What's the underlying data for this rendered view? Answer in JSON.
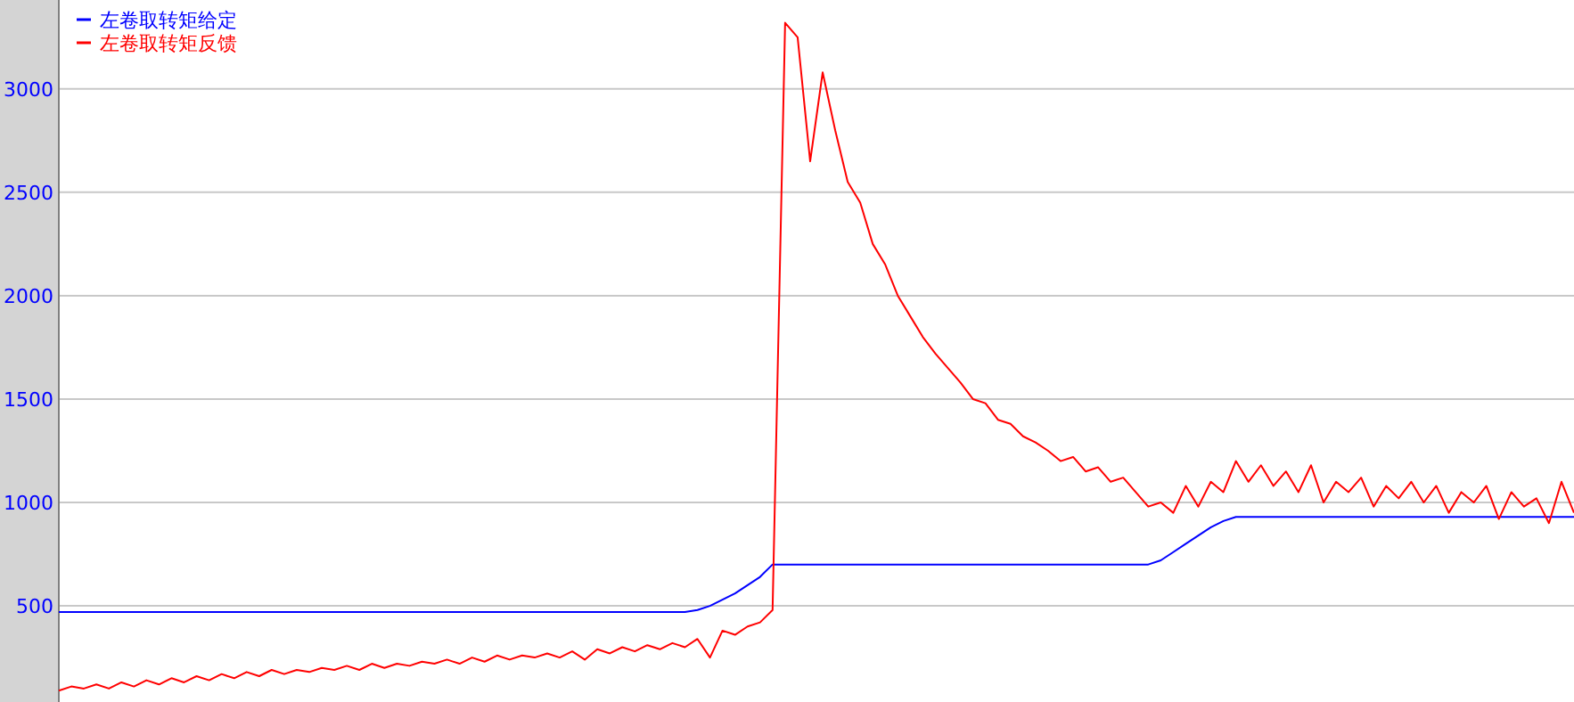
{
  "chart_data": {
    "type": "line",
    "categories": [
      null,
      null,
      null,
      null,
      null,
      null,
      null,
      null,
      null,
      null,
      null,
      null,
      null,
      null,
      null,
      null,
      null,
      null,
      null,
      null,
      null,
      null,
      null,
      null,
      null,
      null,
      null,
      null,
      null,
      null,
      null,
      null,
      null,
      null,
      null,
      null,
      null,
      null,
      null,
      null,
      null,
      null,
      null,
      null,
      null,
      null,
      null,
      null,
      null,
      null,
      null,
      null,
      null,
      null,
      null,
      null,
      null,
      null,
      null,
      null,
      null,
      null,
      null,
      null,
      null,
      null,
      null,
      null,
      null,
      null,
      null,
      null,
      null,
      null,
      null,
      null,
      null,
      null,
      null,
      null,
      null,
      null,
      null,
      null,
      null,
      null,
      null,
      null,
      null,
      null,
      null,
      null,
      null,
      null,
      null,
      null,
      null,
      null,
      null,
      null,
      null,
      null,
      null,
      null,
      null,
      null,
      null,
      null,
      null,
      null,
      null,
      null,
      null,
      null,
      null,
      null,
      null,
      null,
      null,
      null,
      null,
      null
    ],
    "ylim": [
      35,
      3430
    ],
    "yticks": [
      500,
      1000,
      1500,
      2000,
      2500,
      3000
    ],
    "grid": "y",
    "legend": "top left",
    "series": [
      {
        "name": "左卷取转矩给定",
        "color": "#0000ff",
        "values": [
          470,
          470,
          470,
          470,
          470,
          470,
          470,
          470,
          470,
          470,
          470,
          470,
          470,
          470,
          470,
          470,
          470,
          470,
          470,
          470,
          470,
          470,
          470,
          470,
          470,
          470,
          470,
          470,
          470,
          470,
          470,
          470,
          470,
          470,
          470,
          470,
          470,
          470,
          470,
          470,
          470,
          470,
          470,
          470,
          470,
          470,
          470,
          470,
          470,
          470,
          470,
          480,
          500,
          530,
          560,
          600,
          640,
          700,
          700,
          700,
          700,
          700,
          700,
          700,
          700,
          700,
          700,
          700,
          700,
          700,
          700,
          700,
          700,
          700,
          700,
          700,
          700,
          700,
          700,
          700,
          700,
          700,
          700,
          700,
          700,
          700,
          700,
          700,
          720,
          760,
          800,
          840,
          880,
          910,
          930,
          930,
          930,
          930,
          930,
          930,
          930,
          930,
          930,
          930,
          930,
          930,
          930,
          930,
          930,
          930,
          930,
          930,
          930,
          930,
          930,
          930,
          930,
          930,
          930,
          930,
          930,
          930
        ]
      },
      {
        "name": "左卷取转矩反馈",
        "color": "#ff0000",
        "values": [
          90,
          110,
          100,
          120,
          100,
          130,
          110,
          140,
          120,
          150,
          130,
          160,
          140,
          170,
          150,
          180,
          160,
          190,
          170,
          190,
          180,
          200,
          190,
          210,
          190,
          220,
          200,
          220,
          210,
          230,
          220,
          240,
          220,
          250,
          230,
          260,
          240,
          260,
          250,
          270,
          250,
          280,
          240,
          290,
          270,
          300,
          280,
          310,
          290,
          320,
          300,
          340,
          250,
          380,
          360,
          400,
          420,
          480,
          3320,
          3250,
          2650,
          3080,
          2800,
          2550,
          2450,
          2250,
          2150,
          2000,
          1900,
          1800,
          1720,
          1650,
          1580,
          1500,
          1480,
          1400,
          1380,
          1320,
          1290,
          1250,
          1200,
          1220,
          1150,
          1170,
          1100,
          1120,
          1050,
          980,
          1000,
          950,
          1080,
          980,
          1100,
          1050,
          1200,
          1100,
          1180,
          1080,
          1150,
          1050,
          1180,
          1000,
          1100,
          1050,
          1120,
          980,
          1080,
          1020,
          1100,
          1000,
          1080,
          950,
          1050,
          1000,
          1080,
          920,
          1050,
          980,
          1020,
          900,
          1100,
          950
        ]
      }
    ]
  }
}
